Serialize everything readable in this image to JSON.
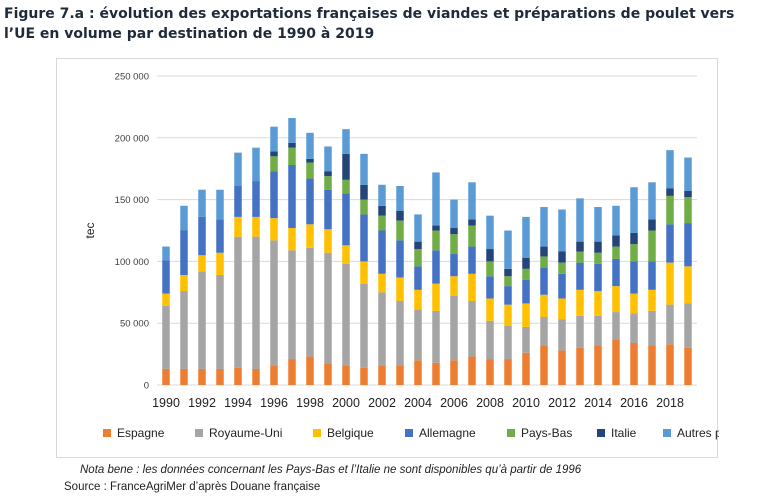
{
  "title_line1": "Figure 7.a : évolution des exportations françaises de viandes et préparations de poulet vers",
  "title_line2": "l’UE en volume par destination de 1990 à 2019",
  "note": "Nota bene : les données concernant les Pays-Bas et l’Italie ne sont disponibles qu’à partir de 1996",
  "source": "Source : FranceAgriMer d’après Douane française",
  "chart_data": {
    "type": "bar",
    "stacked": true,
    "ylabel": "tec",
    "xlabel": "",
    "ylim": [
      0,
      250000
    ],
    "yticks": [
      0,
      50000,
      100000,
      150000,
      200000,
      250000
    ],
    "ytick_labels": [
      "0",
      "50 000",
      "100 000",
      "150 000",
      "200 000",
      "250 000"
    ],
    "grid": true,
    "legend_position": "bottom",
    "x": [
      1990,
      1991,
      1992,
      1993,
      1994,
      1995,
      1996,
      1997,
      1998,
      1999,
      2000,
      2001,
      2002,
      2003,
      2004,
      2005,
      2006,
      2007,
      2008,
      2009,
      2010,
      2011,
      2012,
      2013,
      2014,
      2015,
      2016,
      2017,
      2018,
      2019
    ],
    "xtick_labels": [
      "1990",
      "1992",
      "1994",
      "1996",
      "1998",
      "2000",
      "2002",
      "2004",
      "2006",
      "2008",
      "2010",
      "2012",
      "2014",
      "2016",
      "2018"
    ],
    "series": [
      {
        "name": "Espagne",
        "color": "#ed7d31",
        "values": [
          13000,
          13000,
          13000,
          13000,
          14000,
          13000,
          16000,
          21000,
          23000,
          17000,
          16000,
          14000,
          16000,
          16000,
          20000,
          18000,
          20000,
          23000,
          21000,
          21000,
          26000,
          32000,
          28000,
          30000,
          32000,
          37000,
          34000,
          32000,
          33000,
          30000
        ]
      },
      {
        "name": "Royaume-Uni",
        "color": "#a5a5a5",
        "values": [
          51000,
          63000,
          79000,
          76000,
          106000,
          107000,
          101000,
          88000,
          88000,
          90000,
          82000,
          68000,
          59000,
          52000,
          41000,
          42000,
          52000,
          45000,
          31000,
          27000,
          21000,
          23000,
          25000,
          26000,
          24000,
          22000,
          24000,
          28000,
          32000,
          36000
        ]
      },
      {
        "name": "Belgique",
        "color": "#ffc000",
        "values": [
          10000,
          13000,
          13000,
          18000,
          16000,
          16000,
          18000,
          18000,
          19000,
          19000,
          15000,
          18000,
          15000,
          19000,
          16000,
          22000,
          16000,
          22000,
          18000,
          17000,
          19000,
          18000,
          17000,
          21000,
          20000,
          21000,
          16000,
          17000,
          34000,
          30000
        ]
      },
      {
        "name": "Allemagne",
        "color": "#4472c4",
        "values": [
          27000,
          36000,
          31000,
          27000,
          25000,
          29000,
          38000,
          51000,
          37000,
          32000,
          42000,
          38000,
          35000,
          30000,
          19000,
          27000,
          18000,
          22000,
          18000,
          15000,
          19000,
          22000,
          20000,
          22000,
          22000,
          22000,
          26000,
          23000,
          31000,
          35000
        ]
      },
      {
        "name": "Pays-Bas",
        "color": "#70ad47",
        "values": [
          0,
          0,
          0,
          0,
          0,
          0,
          12000,
          14000,
          13000,
          11000,
          11000,
          12000,
          12000,
          16000,
          14000,
          16000,
          16000,
          17000,
          12000,
          8000,
          9000,
          9000,
          9000,
          9000,
          9000,
          10000,
          14000,
          25000,
          23000,
          21000
        ]
      },
      {
        "name": "Italie",
        "color": "#264478",
        "values": [
          0,
          0,
          0,
          0,
          0,
          0,
          4000,
          4000,
          3000,
          4000,
          21000,
          12000,
          8000,
          8000,
          6000,
          4000,
          5000,
          5000,
          10000,
          6000,
          9000,
          8000,
          9000,
          8000,
          9000,
          9000,
          9000,
          9000,
          6000,
          5000
        ]
      },
      {
        "name": "Autres pays",
        "color": "#5b9bd5",
        "values": [
          11000,
          20000,
          22000,
          24000,
          27000,
          27000,
          20000,
          20000,
          21000,
          20000,
          20000,
          25000,
          17000,
          20000,
          22000,
          43000,
          23000,
          30000,
          27000,
          31000,
          33000,
          32000,
          34000,
          35000,
          28000,
          24000,
          37000,
          30000,
          31000,
          27000
        ]
      }
    ]
  }
}
